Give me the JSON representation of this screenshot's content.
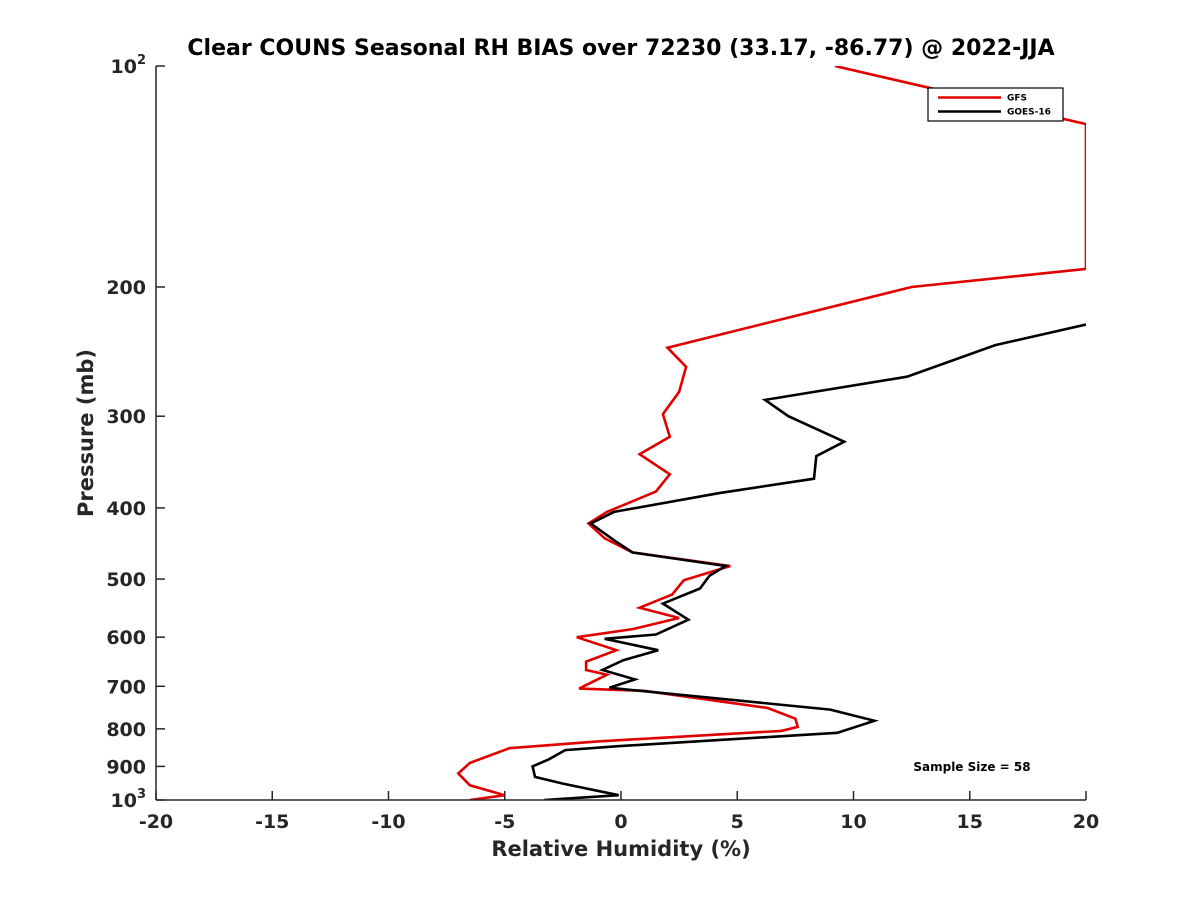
{
  "chart_data": {
    "type": "line",
    "title": "Clear COUNS Seasonal RH BIAS over 72230 (33.17, -86.77) @ 2022-JJA",
    "xlabel": "Relative Humidity (%)",
    "ylabel": "Pressure (mb)",
    "xlim": [
      -20,
      20
    ],
    "ylim": [
      100,
      1000
    ],
    "y_scale": "log",
    "y_reversed": true,
    "x_ticks": [
      -20,
      -15,
      -10,
      -5,
      0,
      5,
      10,
      15,
      20
    ],
    "x_tick_labels": [
      "-20",
      "-15",
      "-10",
      "-5",
      "0",
      "5",
      "10",
      "15",
      "20"
    ],
    "y_ticks": [
      {
        "value": 100,
        "base": "10",
        "exp": "2"
      },
      {
        "value": 200,
        "label": "200"
      },
      {
        "value": 300,
        "label": "300"
      },
      {
        "value": 400,
        "label": "400"
      },
      {
        "value": 500,
        "label": "500"
      },
      {
        "value": 600,
        "label": "600"
      },
      {
        "value": 700,
        "label": "700"
      },
      {
        "value": 800,
        "label": "800"
      },
      {
        "value": 900,
        "label": "900"
      },
      {
        "value": 1000,
        "base": "10",
        "exp": "3"
      }
    ],
    "grid": false,
    "legend_position": "top-right",
    "annotation": "Sample Size = 58",
    "series": [
      {
        "name": "GFS",
        "color": "#e00000",
        "points": [
          [
            9.2,
            100
          ],
          [
            20,
            120
          ],
          [
            20,
            189
          ],
          [
            12.5,
            200
          ],
          [
            2,
            242
          ],
          [
            2.8,
            257
          ],
          [
            2.5,
            278
          ],
          [
            1.8,
            298
          ],
          [
            2.1,
            320
          ],
          [
            0.8,
            338
          ],
          [
            2.1,
            360
          ],
          [
            1.5,
            380
          ],
          [
            -0.6,
            405
          ],
          [
            -1.4,
            420
          ],
          [
            -0.7,
            440
          ],
          [
            0.5,
            460
          ],
          [
            4.7,
            480
          ],
          [
            2.7,
            502
          ],
          [
            2.2,
            525
          ],
          [
            0.8,
            547
          ],
          [
            2.5,
            565
          ],
          [
            0.5,
            585
          ],
          [
            -1.9,
            600
          ],
          [
            -0.2,
            625
          ],
          [
            -1.5,
            648
          ],
          [
            -1.5,
            665
          ],
          [
            -0.6,
            675
          ],
          [
            -1.8,
            705
          ],
          [
            1.0,
            710
          ],
          [
            6.3,
            749
          ],
          [
            7.5,
            775
          ],
          [
            7.6,
            795
          ],
          [
            6.9,
            805
          ],
          [
            -1.0,
            832
          ],
          [
            -4.8,
            850
          ],
          [
            -6.5,
            890
          ],
          [
            -7.0,
            920
          ],
          [
            -6.5,
            955
          ],
          [
            -5.0,
            985
          ],
          [
            -6.5,
            1000
          ]
        ]
      },
      {
        "name": "GOES-16",
        "color": "#000000",
        "points": [
          [
            20,
            225
          ],
          [
            16.1,
            240
          ],
          [
            12.3,
            265
          ],
          [
            6.2,
            285
          ],
          [
            7.2,
            300
          ],
          [
            9.6,
            325
          ],
          [
            8.4,
            340
          ],
          [
            8.3,
            365
          ],
          [
            4.2,
            382
          ],
          [
            -0.3,
            405
          ],
          [
            -1.3,
            420
          ],
          [
            -0.2,
            445
          ],
          [
            0.5,
            460
          ],
          [
            4.5,
            480
          ],
          [
            3.8,
            495
          ],
          [
            3.4,
            515
          ],
          [
            1.8,
            540
          ],
          [
            2.9,
            568
          ],
          [
            1.5,
            595
          ],
          [
            -0.7,
            603
          ],
          [
            1.6,
            625
          ],
          [
            0.1,
            645
          ],
          [
            -0.8,
            665
          ],
          [
            0.6,
            685
          ],
          [
            -0.5,
            703
          ],
          [
            0.4,
            708
          ],
          [
            9.0,
            753
          ],
          [
            10.9,
            780
          ],
          [
            9.3,
            810
          ],
          [
            -0.2,
            845
          ],
          [
            -2.4,
            855
          ],
          [
            -3.1,
            880
          ],
          [
            -3.8,
            900
          ],
          [
            -3.7,
            930
          ],
          [
            -2.5,
            950
          ],
          [
            -0.1,
            985
          ],
          [
            -3.3,
            1000
          ]
        ]
      }
    ]
  },
  "legend": [
    {
      "label": "GFS",
      "color": "#e00000"
    },
    {
      "label": "GOES-16",
      "color": "#000000"
    }
  ]
}
